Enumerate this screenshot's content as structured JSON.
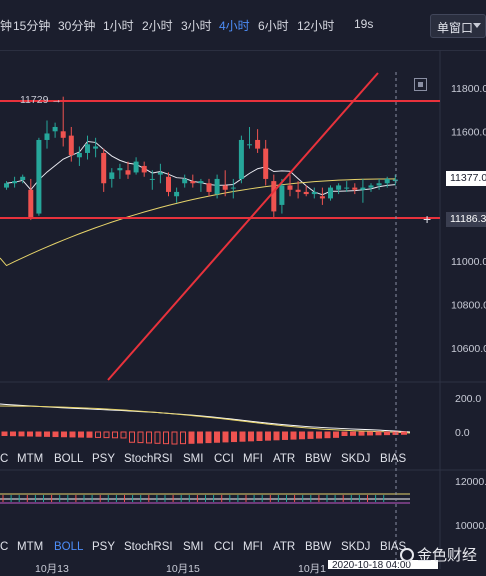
{
  "toolbar": {
    "intervals": [
      "钟",
      "15分钟",
      "30分钟",
      "1小时",
      "2小时",
      "3小时",
      "4小时",
      "6小时",
      "12小时"
    ],
    "active_interval": "4小时",
    "refresh": "19s",
    "window_select": "单窗口"
  },
  "main_chart": {
    "price_axis": [
      "11800.00",
      "11600.00",
      "11400.00",
      "11200.00",
      "11000.00",
      "10800.00",
      "10600.00"
    ],
    "current_price": "11377.0",
    "crosshair_price": "11186.3",
    "high_marker": "11729"
  },
  "indicator_tabs": [
    "C",
    "MTM",
    "BOLL",
    "PSY",
    "StochRSI",
    "SMI",
    "CCI",
    "MFI",
    "ATR",
    "BBW",
    "SKDJ",
    "BIAS"
  ],
  "indicator_tabs_2": [
    "C",
    "MTM",
    "BOLL",
    "PSY",
    "StochRSI",
    "SMI",
    "CCI",
    "MFI",
    "ATR",
    "BBW",
    "SKDJ",
    "BIAS"
  ],
  "tab_state": {
    "first_active": "BOLL",
    "second_active": "BOLL"
  },
  "sub_chart_1": {
    "axis": [
      "200.0",
      "0.0"
    ]
  },
  "sub_chart_2": {
    "axis": [
      "12000.0",
      "10000.0"
    ]
  },
  "time_axis": {
    "ticks": [
      "10月13",
      "10月15",
      "10月1"
    ],
    "cursor_time": "2020-10-18 04:00"
  },
  "watermark": {
    "text": "金色财经"
  },
  "colors": {
    "up": "#26a69a",
    "down": "#ef5350",
    "line_red": "#e8323c",
    "active": "#4d8df7",
    "bg": "#1b1e2d"
  }
}
